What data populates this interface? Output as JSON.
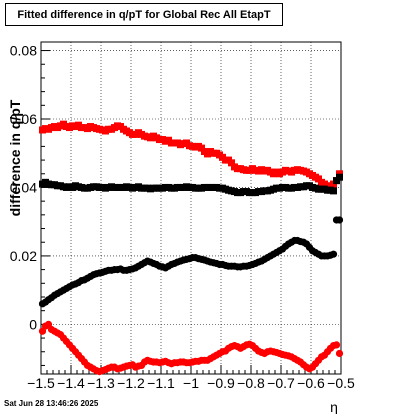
{
  "chart_data": {
    "type": "scatter",
    "title": "Fitted difference in q/pT for Global Rec All EtapT",
    "xlabel": "η",
    "ylabel": "difference in q/pT",
    "xlim": [
      -1.5,
      -0.5
    ],
    "ylim": [
      -0.0145,
      0.0825
    ],
    "x_ticks": [
      -1.5,
      -1.4,
      -1.3,
      -1.2,
      -1.1,
      -1,
      -0.9,
      -0.8,
      -0.7,
      -0.6,
      -0.5
    ],
    "x_tick_labels": [
      "−1.5",
      "−1.4",
      "−1.3",
      "−1.2",
      "−1.1",
      "−1",
      "−0.9",
      "−0.8",
      "−0.7",
      "−0.6",
      "−0.5"
    ],
    "y_ticks": [
      0,
      0.02,
      0.04,
      0.06,
      0.08
    ],
    "y_tick_labels": [
      "0",
      "0.02",
      "0.04",
      "0.06",
      "0.08"
    ],
    "grid": true,
    "series": [
      {
        "color": "#ff0000",
        "marker": "square",
        "x": [
          -1.495,
          -1.485,
          -1.475,
          -1.465,
          -1.455,
          -1.445,
          -1.435,
          -1.425,
          -1.415,
          -1.405,
          -1.395,
          -1.385,
          -1.375,
          -1.365,
          -1.355,
          -1.345,
          -1.335,
          -1.325,
          -1.315,
          -1.305,
          -1.295,
          -1.285,
          -1.275,
          -1.265,
          -1.255,
          -1.245,
          -1.235,
          -1.225,
          -1.215,
          -1.205,
          -1.195,
          -1.185,
          -1.175,
          -1.165,
          -1.155,
          -1.145,
          -1.135,
          -1.125,
          -1.115,
          -1.105,
          -1.095,
          -1.085,
          -1.075,
          -1.065,
          -1.055,
          -1.045,
          -1.035,
          -1.025,
          -1.015,
          -1.005,
          -0.995,
          -0.985,
          -0.975,
          -0.965,
          -0.955,
          -0.945,
          -0.935,
          -0.925,
          -0.915,
          -0.905,
          -0.895,
          -0.885,
          -0.875,
          -0.865,
          -0.855,
          -0.845,
          -0.835,
          -0.825,
          -0.815,
          -0.805,
          -0.795,
          -0.785,
          -0.775,
          -0.765,
          -0.755,
          -0.745,
          -0.735,
          -0.725,
          -0.715,
          -0.705,
          -0.695,
          -0.685,
          -0.675,
          -0.665,
          -0.655,
          -0.645,
          -0.635,
          -0.625,
          -0.615,
          -0.605,
          -0.595,
          -0.585,
          -0.575,
          -0.565,
          -0.555,
          -0.545,
          -0.535,
          -0.525,
          -0.515,
          -0.505
        ],
        "y": [
          0.0568,
          0.0572,
          0.057,
          0.0575,
          0.0578,
          0.0575,
          0.058,
          0.0585,
          0.0578,
          0.0575,
          0.058,
          0.0578,
          0.0582,
          0.0575,
          0.0575,
          0.0572,
          0.0578,
          0.0575,
          0.0572,
          0.057,
          0.0568,
          0.0565,
          0.057,
          0.057,
          0.0575,
          0.058,
          0.0578,
          0.057,
          0.0565,
          0.056,
          0.0555,
          0.0555,
          0.056,
          0.0555,
          0.055,
          0.0548,
          0.0545,
          0.055,
          0.0545,
          0.054,
          0.054,
          0.0535,
          0.0538,
          0.053,
          0.053,
          0.053,
          0.0525,
          0.0528,
          0.053,
          0.0522,
          0.052,
          0.0518,
          0.052,
          0.0515,
          0.0505,
          0.0498,
          0.0505,
          0.05,
          0.05,
          0.0495,
          0.0488,
          0.048,
          0.048,
          0.0472,
          0.046,
          0.0455,
          0.0455,
          0.0452,
          0.045,
          0.045,
          0.0455,
          0.045,
          0.0448,
          0.0452,
          0.0448,
          0.045,
          0.0445,
          0.044,
          0.0445,
          0.044,
          0.0445,
          0.045,
          0.0448,
          0.0445,
          0.045,
          0.0452,
          0.045,
          0.0448,
          0.0445,
          0.044,
          0.0435,
          0.043,
          0.0425,
          0.0415,
          0.041,
          0.0405,
          0.04,
          0.041,
          0.042,
          0.044
        ]
      },
      {
        "color": "#000000",
        "marker": "square",
        "x": [
          -1.495,
          -1.485,
          -1.475,
          -1.465,
          -1.455,
          -1.445,
          -1.435,
          -1.425,
          -1.415,
          -1.405,
          -1.395,
          -1.385,
          -1.375,
          -1.365,
          -1.355,
          -1.345,
          -1.335,
          -1.325,
          -1.315,
          -1.305,
          -1.295,
          -1.285,
          -1.275,
          -1.265,
          -1.255,
          -1.245,
          -1.235,
          -1.225,
          -1.215,
          -1.205,
          -1.195,
          -1.185,
          -1.175,
          -1.165,
          -1.155,
          -1.145,
          -1.135,
          -1.125,
          -1.115,
          -1.105,
          -1.095,
          -1.085,
          -1.075,
          -1.065,
          -1.055,
          -1.045,
          -1.035,
          -1.025,
          -1.015,
          -1.005,
          -0.995,
          -0.985,
          -0.975,
          -0.965,
          -0.955,
          -0.945,
          -0.935,
          -0.925,
          -0.915,
          -0.905,
          -0.895,
          -0.885,
          -0.875,
          -0.865,
          -0.855,
          -0.845,
          -0.835,
          -0.825,
          -0.815,
          -0.805,
          -0.795,
          -0.785,
          -0.775,
          -0.765,
          -0.755,
          -0.745,
          -0.735,
          -0.725,
          -0.715,
          -0.705,
          -0.695,
          -0.685,
          -0.675,
          -0.665,
          -0.655,
          -0.645,
          -0.635,
          -0.625,
          -0.615,
          -0.605,
          -0.595,
          -0.585,
          -0.575,
          -0.565,
          -0.555,
          -0.545,
          -0.535,
          -0.525,
          -0.515,
          -0.505
        ],
        "y": [
          0.041,
          0.0415,
          0.041,
          0.0408,
          0.0408,
          0.0405,
          0.0405,
          0.0402,
          0.04,
          0.0402,
          0.04,
          0.0405,
          0.0402,
          0.04,
          0.0398,
          0.0398,
          0.04,
          0.0402,
          0.0402,
          0.04,
          0.04,
          0.0398,
          0.04,
          0.0402,
          0.04,
          0.04,
          0.04,
          0.04,
          0.0402,
          0.04,
          0.0398,
          0.04,
          0.0402,
          0.0398,
          0.0398,
          0.0398,
          0.0396,
          0.0398,
          0.0398,
          0.0398,
          0.0398,
          0.04,
          0.04,
          0.0398,
          0.0398,
          0.04,
          0.04,
          0.04,
          0.0402,
          0.04,
          0.04,
          0.0398,
          0.0398,
          0.0398,
          0.04,
          0.04,
          0.04,
          0.04,
          0.04,
          0.0398,
          0.0398,
          0.0395,
          0.0392,
          0.039,
          0.0388,
          0.0385,
          0.0385,
          0.0388,
          0.0388,
          0.0385,
          0.0385,
          0.0385,
          0.0388,
          0.0388,
          0.039,
          0.039,
          0.0392,
          0.0395,
          0.0398,
          0.0398,
          0.04,
          0.04,
          0.0398,
          0.0398,
          0.04,
          0.04,
          0.0402,
          0.0402,
          0.0405,
          0.0405,
          0.04,
          0.0398,
          0.0395,
          0.0395,
          0.0395,
          0.0392,
          0.0392,
          0.039,
          0.042,
          0.043
        ]
      },
      {
        "color": "#000000",
        "marker": "circle",
        "x": [
          -1.495,
          -1.485,
          -1.475,
          -1.465,
          -1.455,
          -1.445,
          -1.435,
          -1.425,
          -1.415,
          -1.405,
          -1.395,
          -1.385,
          -1.375,
          -1.365,
          -1.355,
          -1.345,
          -1.335,
          -1.325,
          -1.315,
          -1.305,
          -1.295,
          -1.285,
          -1.275,
          -1.265,
          -1.255,
          -1.245,
          -1.235,
          -1.225,
          -1.215,
          -1.205,
          -1.195,
          -1.185,
          -1.175,
          -1.165,
          -1.155,
          -1.145,
          -1.135,
          -1.125,
          -1.115,
          -1.105,
          -1.095,
          -1.085,
          -1.075,
          -1.065,
          -1.055,
          -1.045,
          -1.035,
          -1.025,
          -1.015,
          -1.005,
          -0.995,
          -0.985,
          -0.975,
          -0.965,
          -0.955,
          -0.945,
          -0.935,
          -0.925,
          -0.915,
          -0.905,
          -0.895,
          -0.885,
          -0.875,
          -0.865,
          -0.855,
          -0.845,
          -0.835,
          -0.825,
          -0.815,
          -0.805,
          -0.795,
          -0.785,
          -0.775,
          -0.765,
          -0.755,
          -0.745,
          -0.735,
          -0.725,
          -0.715,
          -0.705,
          -0.695,
          -0.685,
          -0.675,
          -0.665,
          -0.655,
          -0.645,
          -0.635,
          -0.625,
          -0.615,
          -0.605,
          -0.595,
          -0.585,
          -0.575,
          -0.565,
          -0.555,
          -0.545,
          -0.535,
          -0.525,
          -0.515,
          -0.505
        ],
        "y": [
          0.006,
          0.0065,
          0.0072,
          0.0078,
          0.0085,
          0.009,
          0.0095,
          0.01,
          0.0105,
          0.011,
          0.0115,
          0.0118,
          0.0122,
          0.0128,
          0.013,
          0.0135,
          0.014,
          0.0145,
          0.0148,
          0.015,
          0.0152,
          0.0155,
          0.0158,
          0.0158,
          0.016,
          0.016,
          0.0162,
          0.0158,
          0.0158,
          0.016,
          0.0162,
          0.0165,
          0.017,
          0.0175,
          0.018,
          0.0185,
          0.0182,
          0.0178,
          0.0175,
          0.017,
          0.0168,
          0.0165,
          0.017,
          0.0175,
          0.0178,
          0.0182,
          0.0185,
          0.0188,
          0.019,
          0.0192,
          0.0195,
          0.0195,
          0.0192,
          0.019,
          0.0188,
          0.0185,
          0.0182,
          0.018,
          0.0178,
          0.0175,
          0.0175,
          0.0172,
          0.017,
          0.017,
          0.017,
          0.0168,
          0.0168,
          0.017,
          0.017,
          0.0172,
          0.0175,
          0.0178,
          0.0182,
          0.0185,
          0.019,
          0.0195,
          0.02,
          0.0205,
          0.021,
          0.0215,
          0.022,
          0.0228,
          0.0235,
          0.024,
          0.0245,
          0.0245,
          0.0242,
          0.024,
          0.0235,
          0.0225,
          0.0215,
          0.021,
          0.0205,
          0.02,
          0.02,
          0.02,
          0.0202,
          0.0205,
          0.0305,
          0.0305
        ]
      },
      {
        "color": "#ff0000",
        "marker": "circle",
        "x": [
          -1.495,
          -1.485,
          -1.475,
          -1.465,
          -1.455,
          -1.445,
          -1.435,
          -1.425,
          -1.415,
          -1.405,
          -1.395,
          -1.385,
          -1.375,
          -1.365,
          -1.355,
          -1.345,
          -1.335,
          -1.325,
          -1.315,
          -1.305,
          -1.295,
          -1.285,
          -1.275,
          -1.265,
          -1.255,
          -1.245,
          -1.235,
          -1.225,
          -1.215,
          -1.205,
          -1.195,
          -1.185,
          -1.175,
          -1.165,
          -1.155,
          -1.145,
          -1.135,
          -1.125,
          -1.115,
          -1.105,
          -1.095,
          -1.085,
          -1.075,
          -1.065,
          -1.055,
          -1.045,
          -1.035,
          -1.025,
          -1.015,
          -1.005,
          -0.995,
          -0.985,
          -0.975,
          -0.965,
          -0.955,
          -0.945,
          -0.935,
          -0.925,
          -0.915,
          -0.905,
          -0.895,
          -0.885,
          -0.875,
          -0.865,
          -0.855,
          -0.845,
          -0.835,
          -0.825,
          -0.815,
          -0.805,
          -0.795,
          -0.785,
          -0.775,
          -0.765,
          -0.755,
          -0.745,
          -0.735,
          -0.725,
          -0.715,
          -0.705,
          -0.695,
          -0.685,
          -0.675,
          -0.665,
          -0.655,
          -0.645,
          -0.635,
          -0.625,
          -0.615,
          -0.605,
          -0.595,
          -0.585,
          -0.575,
          -0.565,
          -0.555,
          -0.545,
          -0.535,
          -0.525,
          -0.515,
          -0.505
        ],
        "y": [
          -0.002,
          -0.0005,
          0.0,
          -0.0015,
          -0.002,
          -0.0025,
          -0.003,
          -0.004,
          -0.005,
          -0.006,
          -0.007,
          -0.008,
          -0.009,
          -0.01,
          -0.011,
          -0.012,
          -0.0125,
          -0.013,
          -0.0135,
          -0.0138,
          -0.0135,
          -0.0132,
          -0.0128,
          -0.0125,
          -0.0125,
          -0.013,
          -0.0128,
          -0.0125,
          -0.0122,
          -0.012,
          -0.0118,
          -0.0125,
          -0.0122,
          -0.012,
          -0.011,
          -0.0105,
          -0.0108,
          -0.011,
          -0.011,
          -0.0112,
          -0.011,
          -0.0108,
          -0.0112,
          -0.0115,
          -0.0112,
          -0.0112,
          -0.011,
          -0.011,
          -0.0112,
          -0.0112,
          -0.011,
          -0.0108,
          -0.0108,
          -0.0105,
          -0.0105,
          -0.0105,
          -0.01,
          -0.0095,
          -0.009,
          -0.0085,
          -0.008,
          -0.0078,
          -0.007,
          -0.0065,
          -0.0062,
          -0.0065,
          -0.007,
          -0.0065,
          -0.006,
          -0.0058,
          -0.0062,
          -0.007,
          -0.0078,
          -0.0082,
          -0.0085,
          -0.008,
          -0.0078,
          -0.008,
          -0.0082,
          -0.0085,
          -0.0088,
          -0.009,
          -0.0092,
          -0.0095,
          -0.01,
          -0.0105,
          -0.011,
          -0.0118,
          -0.0125,
          -0.013,
          -0.0125,
          -0.0115,
          -0.0105,
          -0.0095,
          -0.009,
          -0.008,
          -0.007,
          -0.0062,
          -0.006,
          -0.0085
        ]
      }
    ]
  },
  "footer": {
    "date": "Sat Jun 28 13:46:26 2025"
  }
}
